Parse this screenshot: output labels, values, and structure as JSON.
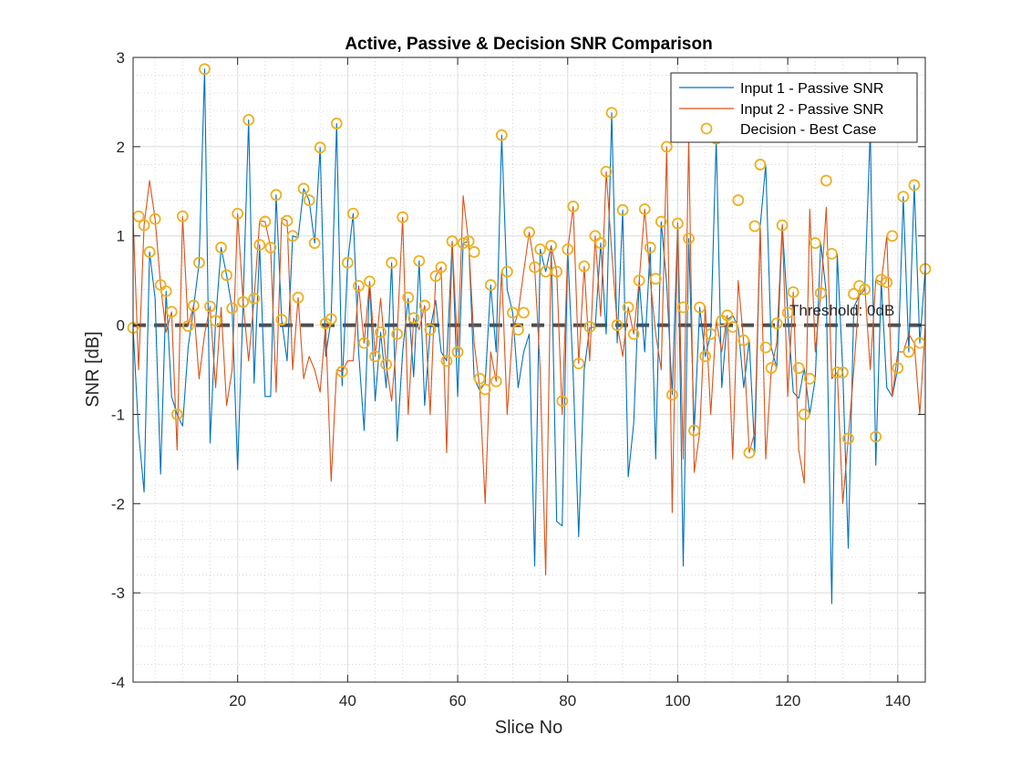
{
  "chart_data": {
    "type": "line",
    "title": "Active, Passive & Decision SNR Comparison",
    "xlabel": "Slice No",
    "ylabel": "SNR [dB]",
    "xlim": [
      1,
      145
    ],
    "ylim": [
      -4,
      3
    ],
    "xticks": [
      20,
      40,
      60,
      80,
      100,
      120,
      140
    ],
    "yticks": [
      -4,
      -3,
      -2,
      -1,
      0,
      1,
      2,
      3
    ],
    "grid": true,
    "minor_grid": true,
    "legend_position": "top-right",
    "threshold": {
      "value": 0,
      "label": "Threshold: 0dB",
      "color": "#4d4d4d"
    },
    "x": [
      1,
      2,
      3,
      4,
      5,
      6,
      7,
      8,
      9,
      10,
      11,
      12,
      13,
      14,
      15,
      16,
      17,
      18,
      19,
      20,
      21,
      22,
      23,
      24,
      25,
      26,
      27,
      28,
      29,
      30,
      31,
      32,
      33,
      34,
      35,
      36,
      37,
      38,
      39,
      40,
      41,
      42,
      43,
      44,
      45,
      46,
      47,
      48,
      49,
      50,
      51,
      52,
      53,
      54,
      55,
      56,
      57,
      58,
      59,
      60,
      61,
      62,
      63,
      64,
      65,
      66,
      67,
      68,
      69,
      70,
      71,
      72,
      73,
      74,
      75,
      76,
      77,
      78,
      79,
      80,
      81,
      82,
      83,
      84,
      85,
      86,
      87,
      88,
      89,
      90,
      91,
      92,
      93,
      94,
      95,
      96,
      97,
      98,
      99,
      100,
      101,
      102,
      103,
      104,
      105,
      106,
      107,
      108,
      109,
      110,
      111,
      112,
      113,
      114,
      115,
      116,
      117,
      118,
      119,
      120,
      121,
      122,
      123,
      124,
      125,
      126,
      127,
      128,
      129,
      130,
      131,
      132,
      133,
      134,
      135,
      136,
      137,
      138,
      139,
      140,
      141,
      142,
      143,
      144,
      145
    ],
    "series": [
      {
        "name": "Input 1 - Passive SNR",
        "color": "#0072BD",
        "style": "line",
        "values": [
          -0.03,
          -1.2,
          -1.87,
          0.82,
          0.3,
          -1.67,
          0.38,
          -0.8,
          -1.0,
          -1.13,
          -0.25,
          0.2,
          0.7,
          2.87,
          -1.32,
          0.05,
          0.87,
          0.56,
          0.19,
          -1.62,
          0.26,
          2.3,
          -0.65,
          0.9,
          -0.8,
          -0.8,
          1.46,
          0.06,
          -0.4,
          1.0,
          0.98,
          1.53,
          1.4,
          0.92,
          1.99,
          -0.35,
          0.07,
          2.26,
          -0.68,
          0.7,
          1.25,
          -0.3,
          -1.18,
          0.48,
          -0.85,
          -0.08,
          -0.7,
          0.7,
          -1.3,
          -0.3,
          0.3,
          -0.58,
          0.72,
          -0.9,
          -0.05,
          0.28,
          -0.3,
          -0.4,
          0.93,
          -0.8,
          0.92,
          0.94,
          -0.6,
          -0.73,
          -0.65,
          0.45,
          -0.3,
          2.13,
          0.4,
          0.14,
          -0.7,
          -0.3,
          -0.1,
          -2.7,
          0.85,
          0.6,
          0.89,
          -2.2,
          -2.25,
          0.85,
          -0.56,
          -2.37,
          -0.5,
          -0.03,
          -0.02,
          0.92,
          -0.1,
          2.38,
          -0.2,
          1.29,
          -1.7,
          -1.1,
          0.5,
          -0.3,
          0.87,
          -1.5,
          1.16,
          0.46,
          -0.78,
          1.14,
          -2.7,
          0.97,
          -1.18,
          0.2,
          -0.35,
          -0.1,
          2.09,
          -0.7,
          0.06,
          0.11,
          -0.02,
          -0.7,
          -0.17,
          -1.43,
          1.11,
          1.8,
          -0.25,
          -0.48,
          1.12,
          0.14,
          -0.75,
          -0.82,
          -0.48,
          -1.0,
          -0.6,
          0.92,
          0.36,
          -3.12,
          0.8,
          -0.51,
          -2.5,
          0.2,
          0.33,
          0.4,
          2.2,
          -1.57,
          0.5,
          -0.7,
          -0.8,
          -0.48,
          1.44,
          -0.3,
          1.57,
          -0.2,
          0.63
        ]
      },
      {
        "name": "Input 2 - Passive SNR",
        "color": "#D95319",
        "style": "line",
        "values": [
          1.22,
          -0.5,
          1.12,
          1.62,
          1.19,
          0.45,
          -0.08,
          0.15,
          -1.4,
          1.22,
          -0.01,
          0.22,
          -0.6,
          -0.1,
          0.21,
          -0.7,
          0.2,
          -0.9,
          -0.5,
          1.25,
          0.26,
          -0.4,
          0.3,
          1.17,
          1.16,
          0.87,
          -0.75,
          1.2,
          1.17,
          -0.5,
          0.31,
          -0.6,
          -0.35,
          -0.5,
          -0.75,
          0.02,
          -1.75,
          -0.5,
          -0.52,
          -0.4,
          -0.4,
          0.44,
          -0.2,
          0.49,
          -0.35,
          0.3,
          -0.44,
          -0.85,
          -0.1,
          1.21,
          -1.0,
          0.08,
          -0.05,
          0.22,
          -1.0,
          0.55,
          0.65,
          -1.43,
          0.94,
          -0.3,
          1.45,
          0.92,
          -0.2,
          -0.7,
          -2.0,
          -0.3,
          -0.63,
          0.61,
          -1.0,
          -0.05,
          0.14,
          0.6,
          1.04,
          0.65,
          -0.5,
          -2.8,
          0.89,
          0.6,
          -1.0,
          0.84,
          1.33,
          -0.43,
          0.66,
          -0.4,
          1.0,
          0.1,
          1.72,
          0.82,
          0.0,
          -0.35,
          0.2,
          -0.1,
          0.5,
          1.3,
          0.52,
          -0.1,
          -0.5,
          2.0,
          -2.1,
          1.15,
          -1.5,
          2.1,
          -1.65,
          -1.2,
          0.21,
          -1.0,
          0.05,
          -0.3,
          0.11,
          -1.5,
          0.5,
          -0.2,
          -1.43,
          -1.2,
          1.11,
          -1.5,
          -0.5,
          -0.2,
          1.13,
          -0.8,
          0.37,
          -1.4,
          -1.77,
          1.3,
          -0.3,
          0.35,
          1.32,
          -0.6,
          -0.53,
          -2.0,
          -1.27,
          -0.5,
          0.35,
          0.44,
          -0.5,
          0.51,
          0.48,
          1.0,
          -0.8,
          -0.3,
          -0.3,
          -0.1,
          -0.2,
          -1.0,
          0.0
        ]
      },
      {
        "name": "Decision - Best Case",
        "color": "#EDB120",
        "style": "marker",
        "values": [
          -0.03,
          1.22,
          1.12,
          0.82,
          1.19,
          0.45,
          0.38,
          0.15,
          -1.0,
          1.22,
          -0.01,
          0.22,
          0.7,
          2.87,
          0.21,
          0.05,
          0.87,
          0.56,
          0.19,
          1.25,
          0.26,
          2.3,
          0.3,
          0.9,
          1.16,
          0.87,
          1.46,
          0.06,
          1.17,
          1.0,
          0.31,
          1.53,
          1.4,
          0.92,
          1.99,
          0.02,
          0.07,
          2.26,
          -0.52,
          0.7,
          1.25,
          0.44,
          -0.2,
          0.49,
          -0.35,
          -0.08,
          -0.44,
          0.7,
          -0.1,
          1.21,
          0.31,
          0.08,
          0.72,
          0.22,
          -0.05,
          0.55,
          0.65,
          -0.4,
          0.94,
          -0.3,
          0.92,
          0.94,
          0.82,
          -0.6,
          -0.72,
          0.45,
          -0.63,
          2.13,
          0.6,
          0.14,
          -0.05,
          0.14,
          1.04,
          0.65,
          0.85,
          0.6,
          0.89,
          0.6,
          -0.85,
          0.85,
          1.33,
          -0.43,
          0.66,
          -0.02,
          1.0,
          0.92,
          1.72,
          2.38,
          0.0,
          1.29,
          0.2,
          -0.1,
          0.5,
          1.3,
          0.87,
          0.52,
          1.16,
          2.0,
          -0.78,
          1.14,
          0.2,
          0.97,
          -1.18,
          0.2,
          -0.35,
          -0.1,
          2.09,
          0.05,
          0.11,
          -0.02,
          1.4,
          -0.17,
          -1.43,
          1.11,
          1.8,
          -0.25,
          -0.48,
          0.02,
          1.12,
          0.14,
          0.37,
          -0.48,
          -1.0,
          -0.6,
          0.92,
          0.36,
          1.62,
          0.8,
          -0.53,
          -0.53,
          -1.27,
          0.35,
          0.44,
          0.4,
          2.2,
          -1.25,
          0.51,
          0.48,
          1.0,
          -0.48,
          1.44,
          -0.3,
          1.57,
          -0.2,
          0.63
        ]
      }
    ]
  }
}
